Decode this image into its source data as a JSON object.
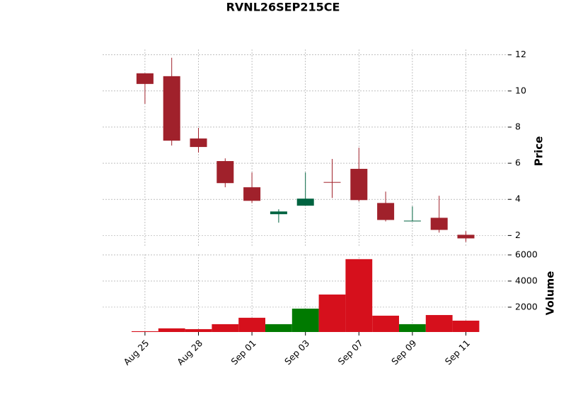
{
  "chart_data": {
    "type": "candlestick",
    "title": "RVNL26SEP215CE",
    "y_label": "Price",
    "y2_label": "Volume",
    "categories": [
      "Aug 25",
      null,
      "Aug 28",
      null,
      "Sep 01",
      null,
      "Sep 03",
      null,
      "Sep 07",
      null,
      "Sep 09",
      null,
      "Sep 11"
    ],
    "open": [
      10.98,
      10.82,
      7.37,
      6.12,
      4.67,
      3.18,
      3.65,
      4.96,
      5.69,
      3.8,
      2.81,
      2.98,
      2.04
    ],
    "high": [
      10.98,
      11.84,
      7.96,
      6.27,
      5.49,
      3.45,
      5.49,
      6.24,
      6.86,
      4.43,
      3.61,
      4.2,
      2.24
    ],
    "low": [
      9.29,
      6.98,
      6.59,
      4.67,
      3.8,
      2.71,
      3.65,
      4.08,
      3.88,
      2.78,
      2.78,
      2.16,
      1.65
    ],
    "close": [
      10.39,
      7.25,
      6.9,
      4.9,
      3.92,
      3.33,
      4.04,
      4.94,
      3.96,
      2.86,
      2.82,
      2.31,
      1.84
    ],
    "volume": [
      160,
      380,
      320,
      700,
      1190,
      700,
      1890,
      2970,
      5680,
      1350,
      700,
      1400,
      970
    ],
    "up_color": "#006340",
    "down_color": "#a0212b",
    "volume_up_color": "#007a00",
    "volume_down_color": "#d6101c",
    "ylim": [
      1.35,
      12.3
    ],
    "yticks": [
      2,
      4,
      6,
      8,
      10,
      12
    ],
    "y2lim": [
      100,
      6050
    ],
    "y2ticks": [
      2000,
      4000,
      6000
    ],
    "grid": true
  }
}
